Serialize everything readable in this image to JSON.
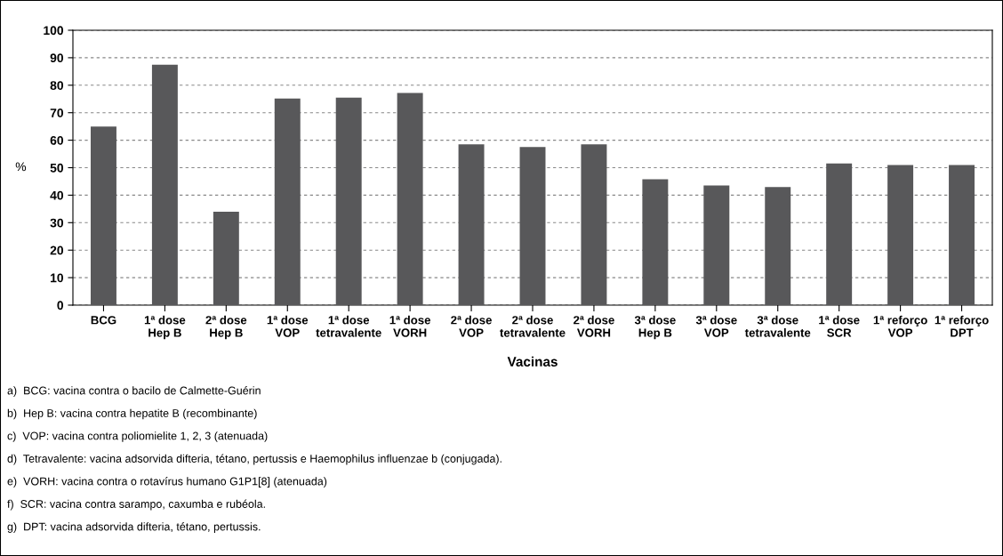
{
  "chart_data": {
    "type": "bar",
    "categories": [
      "BCG",
      "1ª dose\nHep B",
      "2ª dose\nHep B",
      "1ª dose\nVOP",
      "1ª dose\ntetravalente",
      "1ª dose\nVORH",
      "2ª dose\nVOP",
      "2ª dose\ntetravalente",
      "2ª dose\nVORH",
      "3ª dose\nHep B",
      "3ª dose\nVOP",
      "3ª dose\ntetravalente",
      "1ª dose\nSCR",
      "1ª reforço\nVOP",
      "1ª reforço\nDPT"
    ],
    "values": [
      65,
      87.5,
      34,
      75.2,
      75.5,
      77.2,
      58.5,
      57.5,
      58.5,
      45.8,
      43.5,
      43,
      51.5,
      51,
      51
    ],
    "color": "#58585a",
    "ylim": [
      0,
      100
    ],
    "yticks": [
      0,
      10,
      20,
      30,
      40,
      50,
      60,
      70,
      80,
      90,
      100
    ],
    "ylabel": "%",
    "xlabel": "Vacinas",
    "grid": "y",
    "annotations": [
      "a)  BCG: vacina contra o bacilo de Calmette-Guérin",
      "b)  Hep B: vacina contra hepatite B (recombinante)",
      "c)  VOP: vacina contra poliomielite 1, 2, 3 (atenuada)",
      "d)  Tetravalente: vacina adsorvida difteria, tétano, pertussis e Haemophilus influenzae b (conjugada).",
      "e)  VORH: vacina contra o rotavírus humano G1P1[8] (atenuada)",
      "f)  SCR: vacina contra sarampo, caxumba e rubéola.",
      "g)  DPT: vacina adsorvida difteria, tétano, pertussis."
    ]
  }
}
